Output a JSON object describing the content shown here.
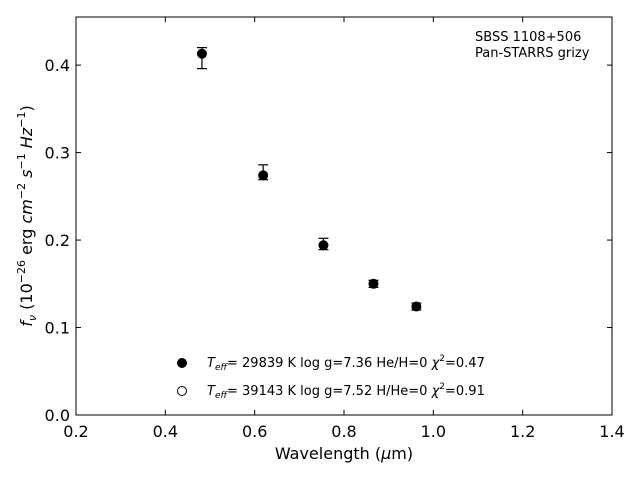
{
  "chart_data": {
    "type": "scatter",
    "annotation_lines": [
      "SBSS 1108+506",
      "Pan-STARRS grizy"
    ],
    "xlabel": "Wavelength (μm)",
    "ylabel": "fν (10⁻²⁶ erg cm⁻² s⁻¹ Hz⁻¹)",
    "xlim": [
      0.2,
      1.4
    ],
    "ylim": [
      0.0,
      0.455
    ],
    "xticks": [
      0.2,
      0.4,
      0.6,
      0.8,
      1.0,
      1.2,
      1.4
    ],
    "yticks": [
      0.0,
      0.1,
      0.2,
      0.3,
      0.4
    ],
    "xtick_labels": [
      "0.2",
      "0.4",
      "0.6",
      "0.8",
      "1.0",
      "1.2",
      "1.4"
    ],
    "ytick_labels": [
      "0.0",
      "0.1",
      "0.2",
      "0.3",
      "0.4"
    ],
    "grid": false,
    "legend_position": "bottom-center",
    "marker_color": "#000000",
    "series": [
      {
        "marker": "filled-circle",
        "label": "T_eff= 29839 K  log g=7.36  He/H=0  χ²=0.47",
        "points": [
          {
            "x": 0.482,
            "y": 0.413,
            "err_up": 0.007,
            "err_down": 0.017
          },
          {
            "x": 0.619,
            "y": 0.274,
            "err_up": 0.012,
            "err_down": 0.005
          },
          {
            "x": 0.754,
            "y": 0.194,
            "err_up": 0.008,
            "err_down": 0.005
          },
          {
            "x": 0.866,
            "y": 0.15,
            "err_up": 0.004,
            "err_down": 0.004
          },
          {
            "x": 0.962,
            "y": 0.124,
            "err_up": 0.004,
            "err_down": 0.004
          }
        ]
      },
      {
        "marker": "open-circle",
        "label": "T_eff= 39143 K  log g=7.52  H/He=0  χ²=0.91",
        "points": []
      }
    ],
    "legend": [
      {
        "marker": "filled-circle",
        "teff_prefix": "T",
        "teff_sub": "eff",
        "text_a": "= 29839 K  log g=7.36  He/H=0  ",
        "chi": "χ",
        "chi_sup": "2",
        "text_b": "=0.47"
      },
      {
        "marker": "open-circle",
        "teff_prefix": "T",
        "teff_sub": "eff",
        "text_a": "= 39143 K  log g=7.52  H/He=0  ",
        "chi": "χ",
        "chi_sup": "2",
        "text_b": "=0.91"
      }
    ],
    "axis_labels": {
      "x_main": "Wavelength (",
      "x_mu": "μ",
      "x_unit": "m)",
      "y_f": "f",
      "y_nu": "ν",
      "y_open": " (10",
      "y_exp": "−26",
      "y_erg": " erg ",
      "y_cm": "cm",
      "y_m2": "−2",
      "y_s": " s",
      "y_m1a": "−1",
      "y_hz": " Hz",
      "y_m1b": "−1",
      "y_close": ")"
    }
  }
}
